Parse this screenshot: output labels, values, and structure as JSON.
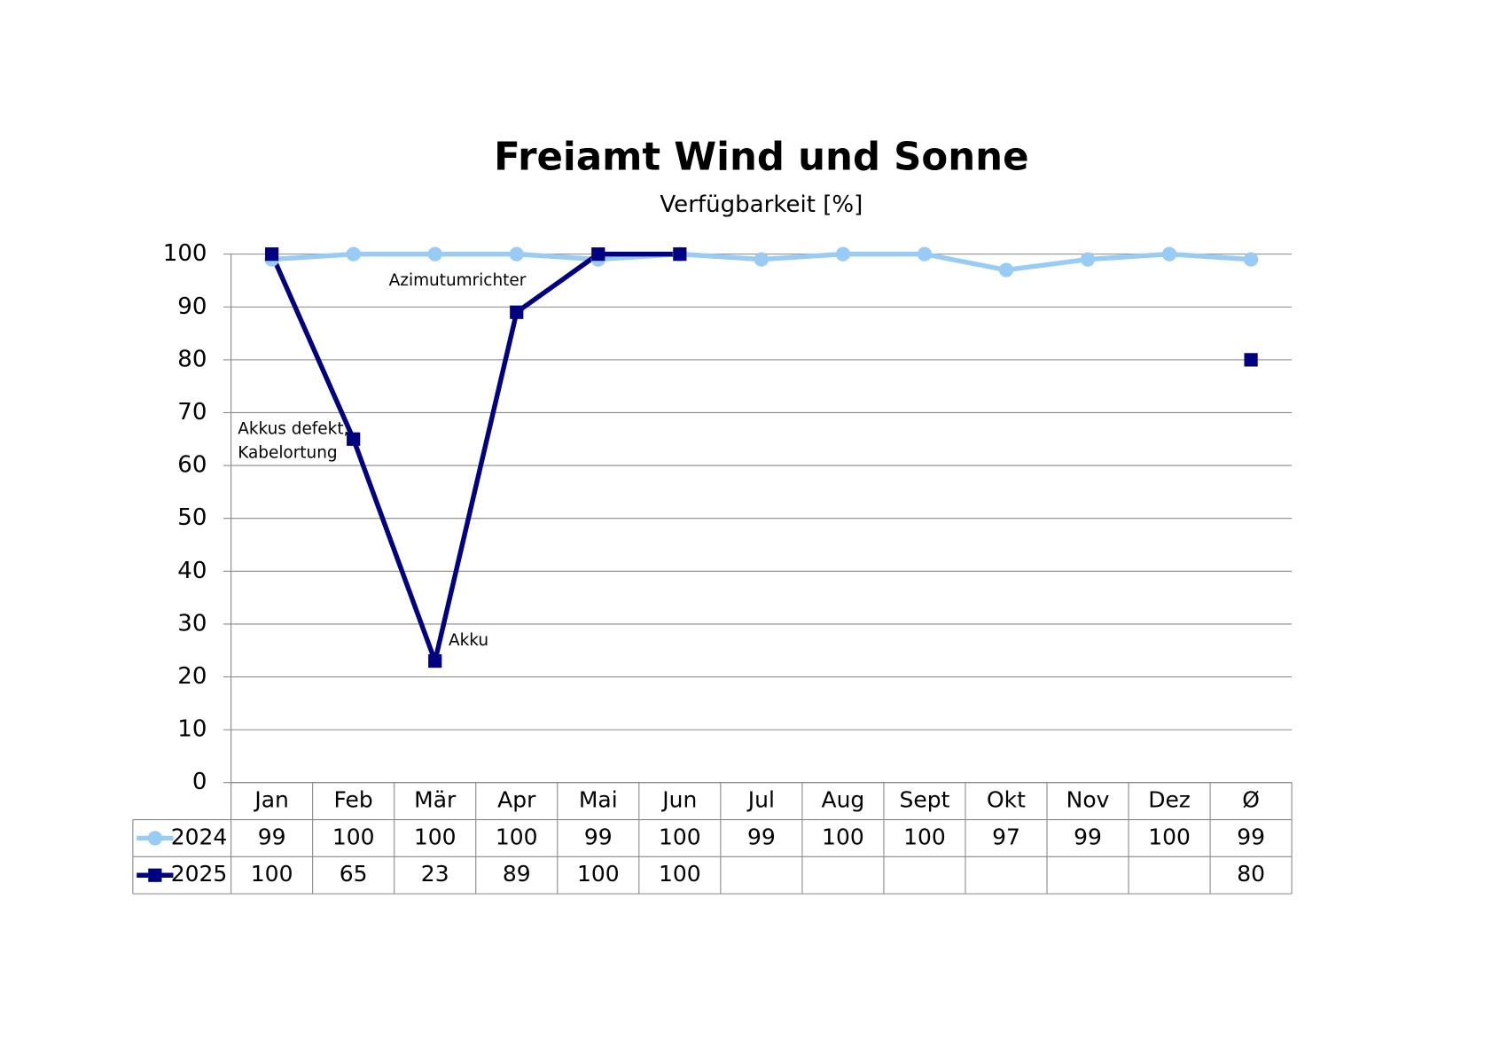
{
  "chart_data": {
    "type": "line",
    "title": "Freiamt Wind und Sonne",
    "subtitle": "Verfügbarkeit [%]",
    "categories": [
      "Jan",
      "Feb",
      "Mär",
      "Apr",
      "Mai",
      "Jun",
      "Jul",
      "Aug",
      "Sept",
      "Okt",
      "Nov",
      "Dez",
      "Ø"
    ],
    "series": [
      {
        "name": "2024",
        "color": "#99ccf5",
        "marker": "circle",
        "values": [
          99,
          100,
          100,
          100,
          99,
          100,
          99,
          100,
          100,
          97,
          99,
          100,
          99
        ]
      },
      {
        "name": "2025",
        "color": "#000080",
        "marker": "square",
        "values": [
          100,
          65,
          23,
          89,
          100,
          100,
          null,
          null,
          null,
          null,
          null,
          null,
          80
        ]
      }
    ],
    "ylim": [
      0,
      100
    ],
    "yticks": [
      0,
      10,
      20,
      30,
      40,
      50,
      60,
      70,
      80,
      90,
      100
    ],
    "grid": true,
    "annotations": [
      "Azimutumrichter",
      "Akkus defekt,",
      "Kabelortung",
      "Akku"
    ]
  }
}
